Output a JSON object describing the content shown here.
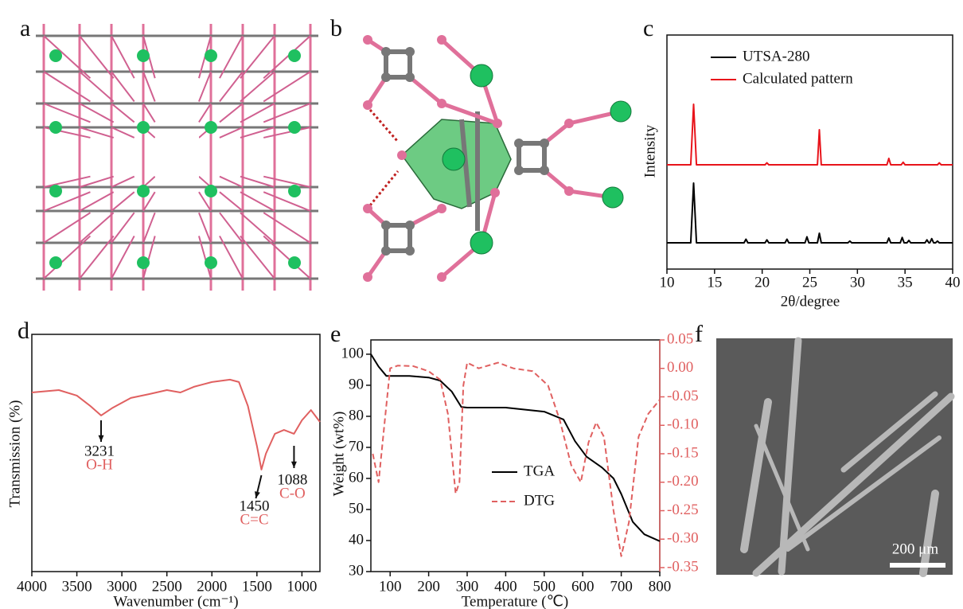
{
  "panel_labels": [
    "a",
    "b",
    "c",
    "d",
    "e",
    "f"
  ],
  "chart_data": [
    {
      "type": "line",
      "xlabel": "2θ/degree",
      "ylabel": "Intensity",
      "xlim": [
        10,
        40
      ],
      "xticks": [
        10,
        15,
        20,
        25,
        30,
        35,
        40
      ],
      "series": [
        {
          "name": "UTSA-280",
          "color": "#000000",
          "x": [
            10,
            12.5,
            12.8,
            13.1,
            18.1,
            18.3,
            18.5,
            20.3,
            20.5,
            20.7,
            22.4,
            22.6,
            22.8,
            24.5,
            24.7,
            24.9,
            25.8,
            26.0,
            26.2,
            29.0,
            29.2,
            29.4,
            33.1,
            33.3,
            33.5,
            34.5,
            34.7,
            34.9,
            35.2,
            35.4,
            35.6,
            37.1,
            37.3,
            37.5,
            37.6,
            37.8,
            38.0,
            38.2,
            38.4,
            38.6,
            40
          ],
          "values": [
            0,
            0,
            1,
            0,
            0,
            0.06,
            0,
            0,
            0.05,
            0,
            0,
            0.06,
            0,
            0,
            0.1,
            0,
            0,
            0.16,
            0,
            0,
            0.03,
            0,
            0,
            0.08,
            0,
            0,
            0.09,
            0,
            0,
            0.04,
            0,
            0,
            0.05,
            0,
            0,
            0.07,
            0,
            0,
            0.03,
            0,
            0
          ]
        },
        {
          "name": "Calculated pattern",
          "color": "#e8141b",
          "x": [
            10,
            12.5,
            12.8,
            13.1,
            20.3,
            20.5,
            20.7,
            25.8,
            26.0,
            26.2,
            33.1,
            33.3,
            33.5,
            34.6,
            34.8,
            35.0,
            38.4,
            38.6,
            38.8,
            40
          ],
          "values": [
            0,
            0,
            0.95,
            0,
            0,
            0.03,
            0,
            0,
            0.55,
            0,
            0,
            0.1,
            0,
            0,
            0.04,
            0,
            0,
            0.03,
            0,
            0
          ]
        }
      ]
    },
    {
      "type": "line",
      "xlabel": "Wavenumber (cm⁻¹)",
      "ylabel": "Transmission (%)",
      "xlim": [
        4000,
        800
      ],
      "xticks": [
        4000,
        3500,
        3000,
        2500,
        2000,
        1500,
        1000
      ],
      "ylim": [
        0,
        100
      ],
      "series": [
        {
          "name": null,
          "color": "#e06060",
          "x": [
            4000,
            3700,
            3500,
            3350,
            3231,
            3100,
            2900,
            2700,
            2500,
            2350,
            2200,
            2000,
            1800,
            1700,
            1600,
            1500,
            1450,
            1400,
            1300,
            1200,
            1088,
            1000,
            900,
            800
          ],
          "values": [
            75.5,
            76.5,
            74.2,
            69.8,
            65.8,
            69.1,
            73.2,
            74.8,
            76.5,
            75.5,
            77.9,
            79.9,
            80.9,
            79.9,
            69.8,
            53.0,
            43.0,
            49.7,
            58.1,
            59.7,
            58.1,
            63.8,
            68.1,
            63.1
          ]
        }
      ],
      "annotations": [
        {
          "x": 3231,
          "text": "3231",
          "label": "O-H"
        },
        {
          "x": 1450,
          "text": "1450",
          "label": "C=C"
        },
        {
          "x": 1088,
          "text": "1088",
          "label": "C-O"
        }
      ]
    },
    {
      "type": "line",
      "xlabel": "Temperature (℃)",
      "ylabel": "Weight (wt%)",
      "xlim": [
        50,
        800
      ],
      "xticks": [
        100,
        200,
        300,
        400,
        500,
        600,
        700,
        800
      ],
      "ylim": [
        30,
        104.6
      ],
      "yticks": [
        30,
        40,
        50,
        60,
        70,
        80,
        90,
        100
      ],
      "y2lim": [
        -0.357,
        0.05
      ],
      "y2ticks": [
        0.05,
        {
          "value": 0,
          "label": "0.00"
        },
        -0.05,
        {
          "value": -0.1,
          "label": "-0.10"
        },
        -0.15,
        {
          "value": -0.2,
          "label": "-0.20"
        },
        -0.25,
        {
          "value": -0.3,
          "label": "-0.30"
        },
        -0.35
      ],
      "series": [
        {
          "name": "TGA",
          "color": "#000000",
          "style": "solid",
          "x": [
            50,
            70,
            90,
            150,
            200,
            230,
            260,
            285,
            300,
            400,
            500,
            550,
            580,
            610,
            650,
            680,
            700,
            730,
            760,
            800
          ],
          "values": [
            100,
            96,
            93,
            93,
            92.5,
            91.5,
            88,
            83,
            82.8,
            82.8,
            81.5,
            79,
            72,
            67,
            63.5,
            60,
            55,
            46,
            42,
            39.8
          ]
        },
        {
          "name": "DTG",
          "color": "#e06060",
          "style": "dashed",
          "axis": "y2",
          "x": [
            55,
            70,
            85,
            100,
            120,
            160,
            200,
            230,
            250,
            270,
            280,
            290,
            300,
            330,
            380,
            420,
            470,
            510,
            540,
            570,
            595,
            615,
            635,
            655,
            680,
            700,
            720,
            745,
            770,
            800
          ],
          "values": [
            -0.15,
            -0.2,
            -0.1,
            0.0,
            0.005,
            0.004,
            -0.005,
            -0.02,
            -0.08,
            -0.22,
            -0.2,
            -0.03,
            0.01,
            0.0,
            0.01,
            0.0,
            -0.005,
            -0.03,
            -0.09,
            -0.17,
            -0.2,
            -0.13,
            -0.095,
            -0.12,
            -0.25,
            -0.33,
            -0.27,
            -0.12,
            -0.08,
            -0.055
          ]
        }
      ]
    }
  ],
  "sem_image": {
    "scale_label": "200 μm"
  }
}
